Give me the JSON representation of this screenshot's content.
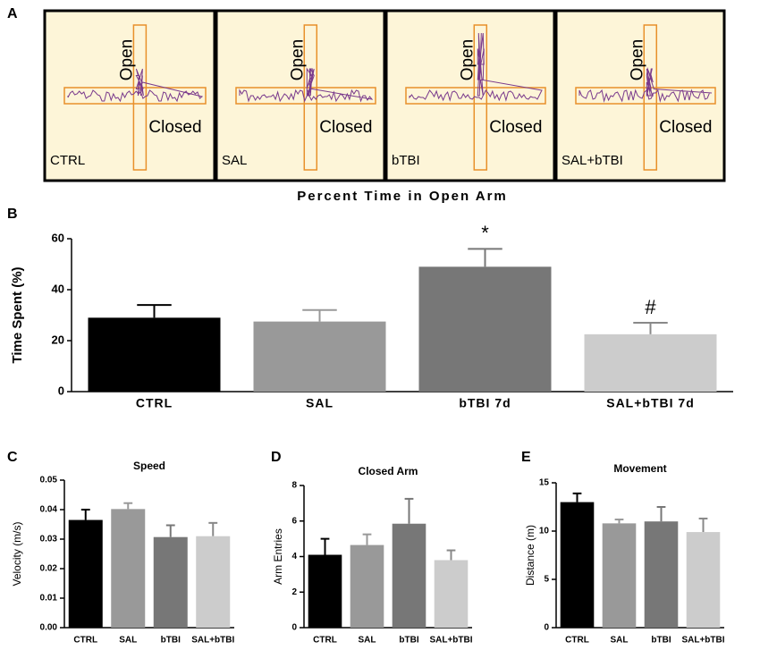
{
  "panel_a": {
    "letter": "A",
    "mazes": [
      {
        "label": "CTRL",
        "open": "Open",
        "closed": "Closed"
      },
      {
        "label": "SAL",
        "open": "Open",
        "closed": "Closed"
      },
      {
        "label": "bTBI",
        "open": "Open",
        "closed": "Closed"
      },
      {
        "label": "SAL+bTBI",
        "open": "Open",
        "closed": "Closed"
      }
    ]
  },
  "chart_data": [
    {
      "type": "bar",
      "panel": "B",
      "title": "Percent Time in Open Arm",
      "y_label": "Time Spent (%)",
      "categories": [
        "CTRL",
        "SAL",
        "bTBI 7d",
        "SAL+bTBI 7d"
      ],
      "values": [
        29,
        27.5,
        49,
        22.5
      ],
      "errors": [
        5,
        4.5,
        7,
        4.5
      ],
      "annotations": [
        null,
        null,
        "*",
        "#"
      ],
      "colors": [
        "#000000",
        "#999999",
        "#777777",
        "#cccccc"
      ],
      "ylim": [
        0,
        60
      ],
      "yticks": [
        0,
        20,
        40,
        60
      ]
    },
    {
      "type": "bar",
      "panel": "C",
      "title": "Speed",
      "y_label": "Velocity (m/s)",
      "categories": [
        "CTRL",
        "SAL",
        "bTBI",
        "SAL+bTBI"
      ],
      "values": [
        0.0365,
        0.0402,
        0.0307,
        0.031
      ],
      "errors": [
        0.0035,
        0.002,
        0.004,
        0.0045
      ],
      "colors": [
        "#000000",
        "#999999",
        "#777777",
        "#cccccc"
      ],
      "ylim": [
        0,
        0.05
      ],
      "yticks": [
        {
          "value": 0,
          "label": "0.00"
        },
        0.01,
        0.02,
        0.03,
        0.04,
        0.05
      ]
    },
    {
      "type": "bar",
      "panel": "D",
      "title": "Closed Arm",
      "y_label": "Arm Entries",
      "categories": [
        "CTRL",
        "SAL",
        "bTBI",
        "SAL+bTBI"
      ],
      "values": [
        4.1,
        4.65,
        5.85,
        3.8
      ],
      "errors": [
        0.9,
        0.6,
        1.4,
        0.55
      ],
      "colors": [
        "#000000",
        "#999999",
        "#777777",
        "#cccccc"
      ],
      "ylim": [
        0,
        8
      ],
      "yticks": [
        0,
        2,
        4,
        6,
        8
      ]
    },
    {
      "type": "bar",
      "panel": "E",
      "title": "Movement",
      "y_label": "Distance (m)",
      "categories": [
        "CTRL",
        "SAL",
        "bTBI",
        "SAL+bTBI"
      ],
      "values": [
        13,
        10.8,
        11,
        9.9
      ],
      "errors": [
        0.9,
        0.4,
        1.5,
        1.4
      ],
      "colors": [
        "#000000",
        "#999999",
        "#777777",
        "#cccccc"
      ],
      "ylim": [
        0,
        15
      ],
      "yticks": [
        0,
        5,
        10,
        15
      ]
    }
  ]
}
